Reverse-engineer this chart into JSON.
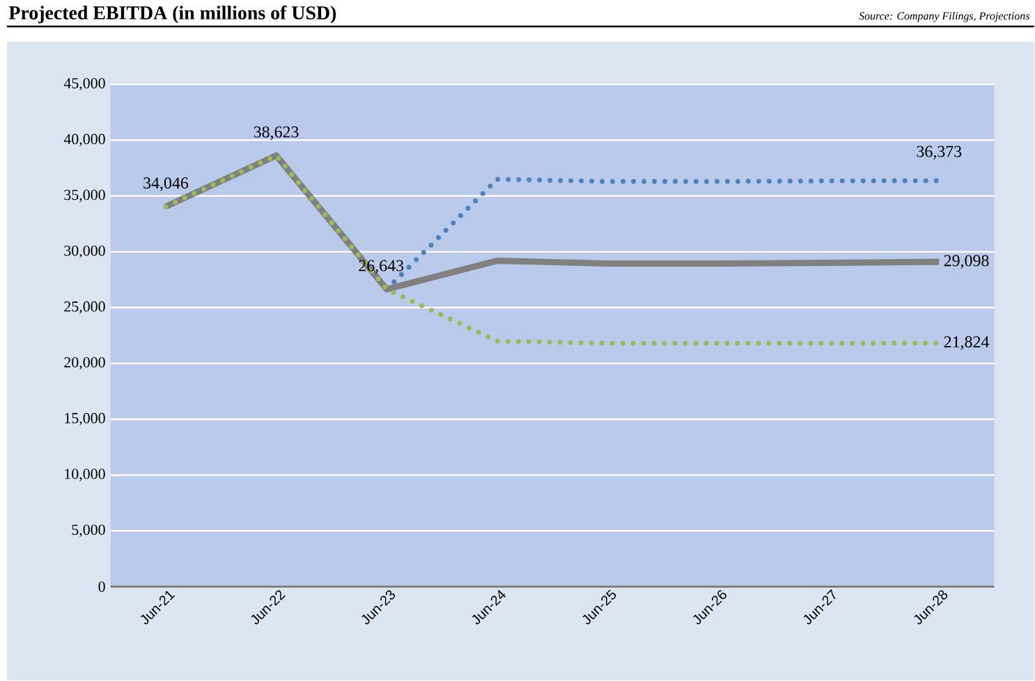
{
  "chart_data": {
    "type": "line",
    "title": "Projected EBITDA (in millions of USD)",
    "annotations": [
      "Source: Company Filings, Projections"
    ],
    "categories": [
      "Jun-21",
      "Jun-22",
      "Jun-23",
      "Jun-24",
      "Jun-25",
      "Jun-26",
      "Jun-27",
      "Jun-28"
    ],
    "series": [
      {
        "color": "#4f81bd",
        "line_style": "dotted",
        "values": [
          null,
          null,
          26643,
          36500,
          36300,
          36300,
          36350,
          36373
        ],
        "value_labels": [
          null,
          null,
          null,
          null,
          null,
          null,
          null,
          "36,373"
        ]
      },
      {
        "color": "#808080",
        "line_style": "solid",
        "values": [
          34046,
          38623,
          26643,
          29200,
          28950,
          28950,
          29000,
          29098
        ],
        "value_labels": [
          "34,046",
          "38,623",
          "26,643",
          null,
          null,
          null,
          null,
          "29,098"
        ]
      },
      {
        "color": "#9bbb59",
        "line_style": "dotted",
        "values": [
          34046,
          38623,
          26643,
          22000,
          21800,
          21800,
          21800,
          21824
        ],
        "value_labels": [
          null,
          null,
          null,
          null,
          null,
          null,
          null,
          "21,824"
        ]
      }
    ],
    "ylim": [
      0,
      45000
    ],
    "yticks": [
      {
        "value": 0,
        "label": "0"
      },
      {
        "value": 5000,
        "label": "5,000"
      },
      {
        "value": 10000,
        "label": "10,000"
      },
      {
        "value": 15000,
        "label": "15,000"
      },
      {
        "value": 20000,
        "label": "20,000"
      },
      {
        "value": 25000,
        "label": "25,000"
      },
      {
        "value": 30000,
        "label": "30,000"
      },
      {
        "value": 35000,
        "label": "35,000"
      },
      {
        "value": 40000,
        "label": "40,000"
      },
      {
        "value": 45000,
        "label": "45,000"
      }
    ],
    "grid": "y",
    "marker": "none"
  }
}
